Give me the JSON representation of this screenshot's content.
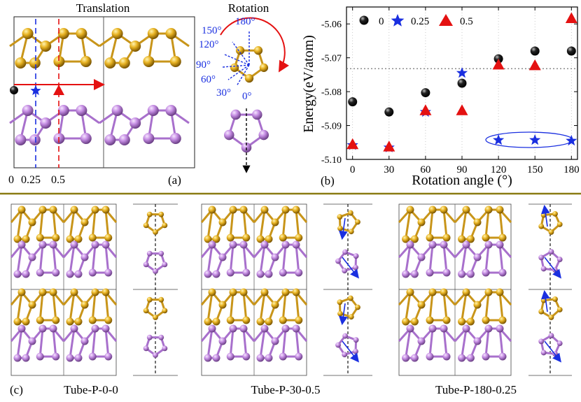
{
  "panel_a": {
    "translation_title": "Translation",
    "rotation_title": "Rotation",
    "label": "(a)",
    "shift_labels": [
      "0",
      "0.25",
      "0.5"
    ],
    "angle_labels": [
      "180°",
      "150°",
      "120°",
      "90°",
      "60°",
      "30°",
      "0°"
    ],
    "colors": {
      "gold": "#e6a918",
      "violet": "#c58ee6",
      "blue": "#1a2fe0",
      "red": "#e41111"
    }
  },
  "panel_b": {
    "label": "(b)",
    "chart_data": {
      "type": "scatter",
      "title": "",
      "xlabel": "Rotation angle (°)",
      "ylabel": "Energy(eV/atom)",
      "xlim": [
        -5,
        185
      ],
      "ylim": [
        -5.1,
        -5.055
      ],
      "x_ticks": [
        0,
        30,
        60,
        90,
        120,
        150,
        180
      ],
      "y_ticks": [
        -5.06,
        -5.07,
        -5.08,
        -5.09,
        -5.1
      ],
      "y_tick_labels": [
        "-5.06",
        "-5.07",
        "-5.08",
        "-5.09",
        "-5.10"
      ],
      "reference_line_y": -5.0732,
      "legend_position": "top",
      "series": [
        {
          "name": "0",
          "marker": "circle",
          "color": "#000000",
          "x": [
            0,
            30,
            60,
            90,
            120,
            150,
            180
          ],
          "y": [
            -5.083,
            -5.086,
            -5.0803,
            -5.0775,
            -5.0703,
            -5.068,
            -5.068
          ]
        },
        {
          "name": "0.25",
          "marker": "star",
          "color": "#1a2fe0",
          "x": [
            0,
            30,
            60,
            90,
            120,
            150,
            180
          ],
          "y": [
            -5.0958,
            -5.0965,
            -5.086,
            -5.0745,
            -5.0943,
            -5.0943,
            -5.0945
          ]
        },
        {
          "name": "0.5",
          "marker": "triangle",
          "color": "#e41111",
          "x": [
            0,
            30,
            60,
            90,
            120,
            150,
            180
          ],
          "y": [
            -5.0955,
            -5.0962,
            -5.0855,
            -5.0855,
            -5.072,
            -5.0722,
            -5.0583
          ]
        }
      ]
    }
  },
  "panel_c": {
    "label": "(c)",
    "structures": [
      "Tube-P-0-0",
      "Tube-P-30-0.5",
      "Tube-P-180-0.25"
    ]
  }
}
